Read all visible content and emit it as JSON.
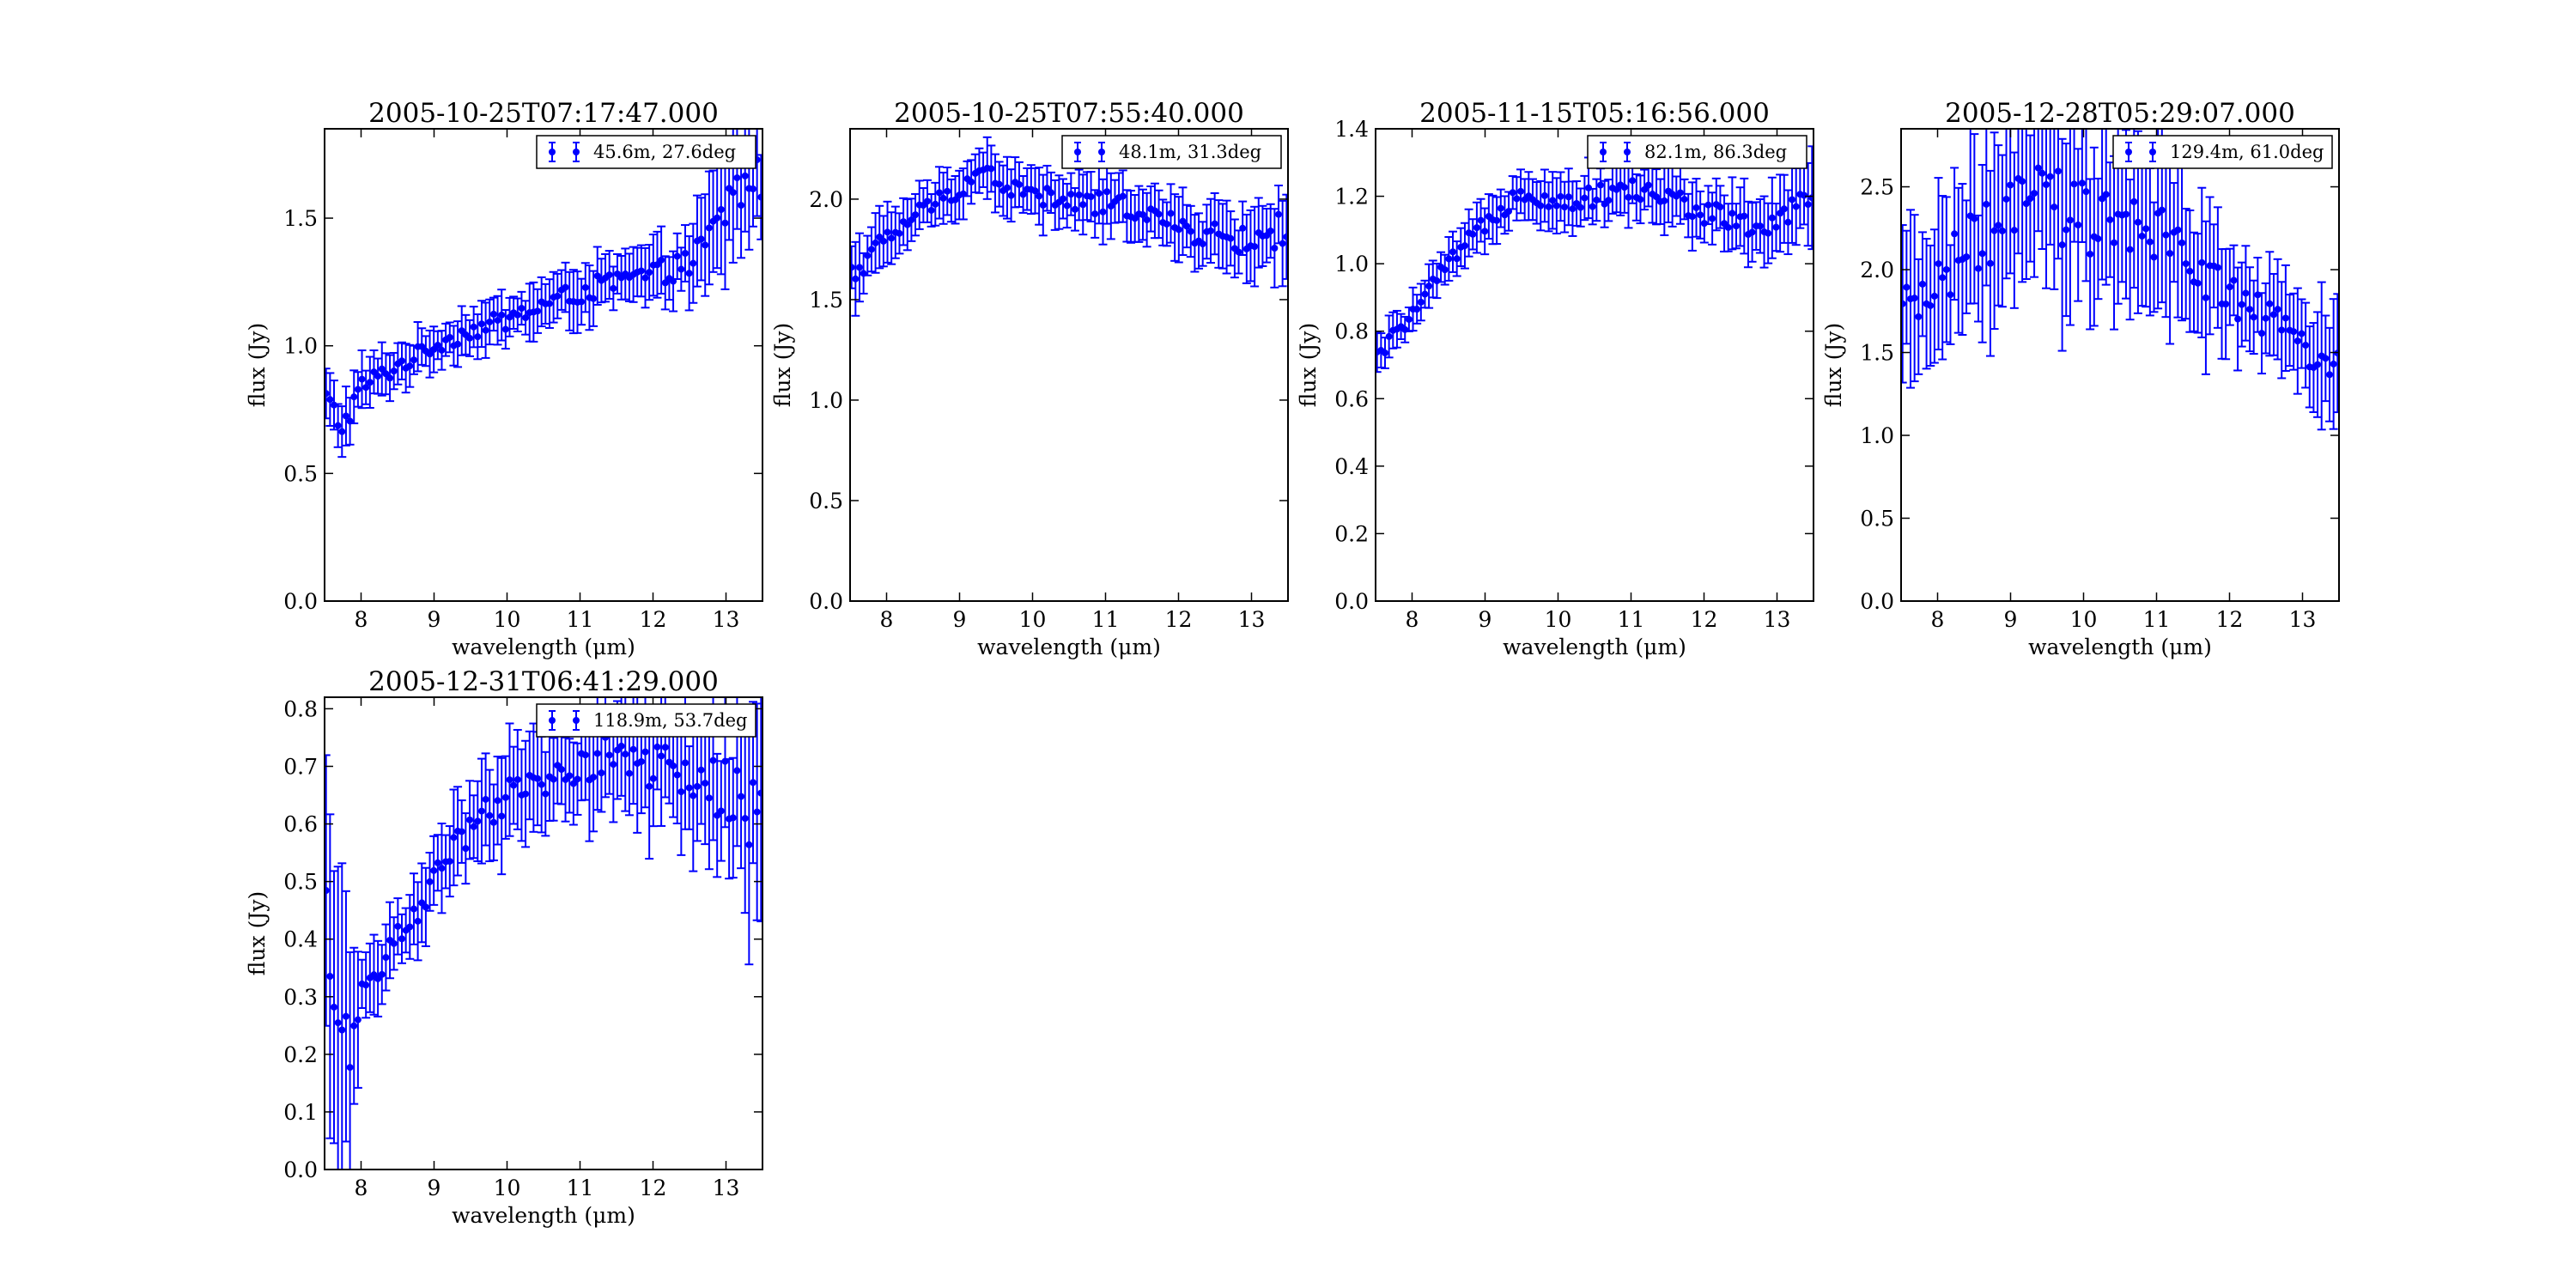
{
  "chart_data": [
    {
      "type": "scatter",
      "title": "2005-10-25T07:17:47.000",
      "xlabel": "wavelength (μm)",
      "ylabel": "flux (Jy)",
      "xlim": [
        7.5,
        13.5
      ],
      "ylim": [
        0,
        1.85
      ],
      "xticks": [
        8,
        9,
        10,
        11,
        12,
        13
      ],
      "yticks": [
        0.0,
        0.5,
        1.0,
        1.5
      ],
      "legend_placement": "upper right",
      "series": [
        {
          "name": "45.6m, 27.6deg",
          "color": "#0000ff",
          "knots": [
            [
              7.5,
              0.8,
              0.12
            ],
            [
              7.75,
              0.68,
              0.1
            ],
            [
              8.0,
              0.84,
              0.09
            ],
            [
              8.5,
              0.92,
              0.08
            ],
            [
              9.0,
              1.0,
              0.07
            ],
            [
              9.5,
              1.06,
              0.08
            ],
            [
              10.0,
              1.1,
              0.09
            ],
            [
              10.5,
              1.16,
              0.09
            ],
            [
              11.0,
              1.21,
              0.1
            ],
            [
              11.5,
              1.25,
              0.1
            ],
            [
              12.0,
              1.28,
              0.1
            ],
            [
              12.5,
              1.32,
              0.12
            ],
            [
              12.8,
              1.42,
              0.2
            ],
            [
              13.0,
              1.55,
              0.25
            ],
            [
              13.3,
              1.65,
              0.2
            ]
          ]
        }
      ]
    },
    {
      "type": "scatter",
      "title": "2005-10-25T07:55:40.000",
      "xlabel": "wavelength (μm)",
      "ylabel": "flux (Jy)",
      "xlim": [
        7.5,
        13.5
      ],
      "ylim": [
        0,
        2.35
      ],
      "xticks": [
        8,
        9,
        10,
        11,
        12,
        13
      ],
      "yticks": [
        0.0,
        0.5,
        1.0,
        1.5,
        2.0
      ],
      "legend_placement": "upper right",
      "series": [
        {
          "name": "48.1m, 31.3deg",
          "color": "#0000ff",
          "knots": [
            [
              7.5,
              1.62,
              0.15
            ],
            [
              8.0,
              1.8,
              0.12
            ],
            [
              8.5,
              1.95,
              0.1
            ],
            [
              9.0,
              2.05,
              0.1
            ],
            [
              9.3,
              2.15,
              0.12
            ],
            [
              9.7,
              2.05,
              0.12
            ],
            [
              10.5,
              1.98,
              0.12
            ],
            [
              11.0,
              1.98,
              0.13
            ],
            [
              11.5,
              1.95,
              0.13
            ],
            [
              12.0,
              1.85,
              0.13
            ],
            [
              12.5,
              1.82,
              0.14
            ],
            [
              13.0,
              1.78,
              0.15
            ],
            [
              13.4,
              1.85,
              0.2
            ]
          ]
        }
      ]
    },
    {
      "type": "scatter",
      "title": "2005-11-15T05:16:56.000",
      "xlabel": "wavelength (μm)",
      "ylabel": "flux (Jy)",
      "xlim": [
        7.5,
        13.5
      ],
      "ylim": [
        0,
        1.4
      ],
      "xticks": [
        8,
        9,
        10,
        11,
        12,
        13
      ],
      "yticks": [
        0.0,
        0.2,
        0.4,
        0.6,
        0.8,
        1.0,
        1.2,
        1.4
      ],
      "legend_placement": "upper right",
      "series": [
        {
          "name": "82.1m, 86.3deg",
          "color": "#0000ff",
          "knots": [
            [
              7.5,
              0.72,
              0.05
            ],
            [
              8.0,
              0.85,
              0.05
            ],
            [
              8.5,
              1.0,
              0.05
            ],
            [
              9.0,
              1.12,
              0.06
            ],
            [
              9.5,
              1.22,
              0.07
            ],
            [
              10.0,
              1.18,
              0.07
            ],
            [
              10.5,
              1.2,
              0.07
            ],
            [
              11.0,
              1.22,
              0.07
            ],
            [
              11.5,
              1.2,
              0.08
            ],
            [
              12.0,
              1.15,
              0.08
            ],
            [
              12.5,
              1.12,
              0.09
            ],
            [
              13.0,
              1.1,
              0.1
            ],
            [
              13.4,
              1.2,
              0.12
            ]
          ]
        }
      ]
    },
    {
      "type": "scatter",
      "title": "2005-12-28T05:29:07.000",
      "xlabel": "wavelength (μm)",
      "ylabel": "flux (Jy)",
      "xlim": [
        7.5,
        13.5
      ],
      "ylim": [
        0,
        2.85
      ],
      "xticks": [
        8,
        9,
        10,
        11,
        12,
        13
      ],
      "yticks": [
        0.0,
        0.5,
        1.0,
        1.5,
        2.0,
        2.5
      ],
      "legend_placement": "upper right",
      "series": [
        {
          "name": "129.4m, 61.0deg",
          "color": "#0000ff",
          "knots": [
            [
              7.5,
              1.65,
              0.45
            ],
            [
              8.0,
              1.95,
              0.4
            ],
            [
              8.5,
              2.15,
              0.45
            ],
            [
              9.0,
              2.3,
              0.5
            ],
            [
              9.4,
              2.5,
              0.5
            ],
            [
              9.7,
              2.35,
              0.5
            ],
            [
              10.5,
              2.25,
              0.45
            ],
            [
              11.0,
              2.2,
              0.45
            ],
            [
              11.5,
              2.05,
              0.4
            ],
            [
              12.0,
              1.85,
              0.3
            ],
            [
              12.5,
              1.7,
              0.25
            ],
            [
              13.0,
              1.55,
              0.25
            ],
            [
              13.4,
              1.45,
              0.4
            ]
          ]
        }
      ]
    },
    {
      "type": "scatter",
      "title": "2005-12-31T06:41:29.000",
      "xlabel": "wavelength (μm)",
      "ylabel": "flux (Jy)",
      "xlim": [
        7.5,
        13.5
      ],
      "ylim": [
        0,
        0.82
      ],
      "xticks": [
        8,
        9,
        10,
        11,
        12,
        13
      ],
      "yticks": [
        0.0,
        0.1,
        0.2,
        0.3,
        0.4,
        0.5,
        0.6,
        0.7,
        0.8
      ],
      "legend_placement": "upper right",
      "series": [
        {
          "name": "118.9m, 53.7deg",
          "color": "#0000ff",
          "knots": [
            [
              7.5,
              0.42,
              0.25
            ],
            [
              7.75,
              0.2,
              0.25
            ],
            [
              8.0,
              0.31,
              0.06
            ],
            [
              8.5,
              0.4,
              0.05
            ],
            [
              9.0,
              0.5,
              0.06
            ],
            [
              9.5,
              0.59,
              0.07
            ],
            [
              10.0,
              0.64,
              0.08
            ],
            [
              10.5,
              0.68,
              0.08
            ],
            [
              11.0,
              0.7,
              0.08
            ],
            [
              11.5,
              0.72,
              0.09
            ],
            [
              12.0,
              0.7,
              0.1
            ],
            [
              12.5,
              0.68,
              0.1
            ],
            [
              13.0,
              0.66,
              0.12
            ],
            [
              13.4,
              0.6,
              0.2
            ]
          ]
        }
      ]
    }
  ]
}
